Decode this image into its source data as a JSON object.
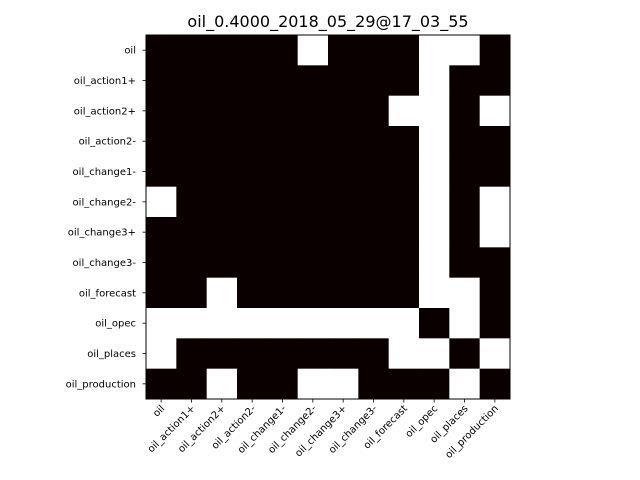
{
  "chart_data": {
    "type": "heatmap",
    "title": "oil_0.4000_2018_05_29@17_03_55",
    "xlabel": "",
    "ylabel": "",
    "rows": [
      "oil",
      "oil_action1+",
      "oil_action2+",
      "oil_action2-",
      "oil_change1-",
      "oil_change2-",
      "oil_change3+",
      "oil_change3-",
      "oil_forecast",
      "oil_opec",
      "oil_places",
      "oil_production"
    ],
    "columns": [
      "oil",
      "oil_action1+",
      "oil_action2+",
      "oil_action2-",
      "oil_change1-",
      "oil_change2-",
      "oil_change3+",
      "oil_change3-",
      "oil_forecast",
      "oil_opec",
      "oil_places",
      "oil_production"
    ],
    "values": [
      [
        1,
        1,
        1,
        1,
        1,
        0,
        1,
        1,
        1,
        0,
        0,
        1
      ],
      [
        1,
        1,
        1,
        1,
        1,
        1,
        1,
        1,
        1,
        0,
        1,
        1
      ],
      [
        1,
        1,
        1,
        1,
        1,
        1,
        1,
        1,
        0,
        0,
        1,
        0
      ],
      [
        1,
        1,
        1,
        1,
        1,
        1,
        1,
        1,
        1,
        0,
        1,
        1
      ],
      [
        1,
        1,
        1,
        1,
        1,
        1,
        1,
        1,
        1,
        0,
        1,
        1
      ],
      [
        0,
        1,
        1,
        1,
        1,
        1,
        1,
        1,
        1,
        0,
        1,
        0
      ],
      [
        1,
        1,
        1,
        1,
        1,
        1,
        1,
        1,
        1,
        0,
        1,
        0
      ],
      [
        1,
        1,
        1,
        1,
        1,
        1,
        1,
        1,
        1,
        0,
        1,
        1
      ],
      [
        1,
        1,
        0,
        1,
        1,
        1,
        1,
        1,
        1,
        0,
        0,
        1
      ],
      [
        0,
        0,
        0,
        0,
        0,
        0,
        0,
        0,
        0,
        1,
        0,
        1
      ],
      [
        0,
        1,
        1,
        1,
        1,
        1,
        1,
        1,
        0,
        0,
        1,
        0
      ],
      [
        1,
        1,
        0,
        1,
        1,
        0,
        0,
        1,
        1,
        1,
        0,
        1
      ]
    ],
    "colors": {
      "1": "#0b0000",
      "0": "#ffffff"
    },
    "grid": false
  }
}
